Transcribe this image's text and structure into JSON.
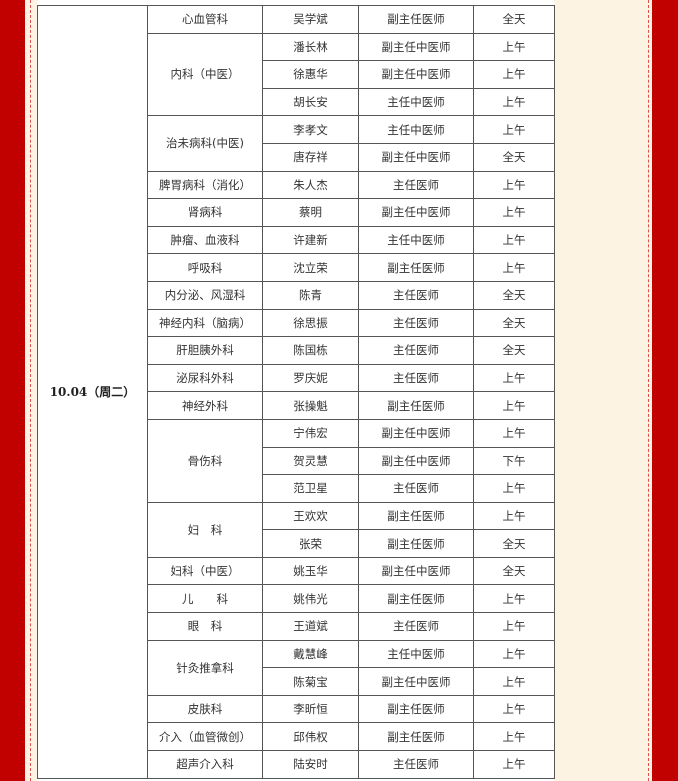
{
  "date": "10.04（周二）",
  "rows": [
    {
      "dept": "心血管科",
      "doctor": "吴学斌",
      "title": "副主任医师",
      "time": "全天"
    },
    {
      "dept": "内科（中医）",
      "doctor": "潘长林",
      "title": "副主任中医师",
      "time": "上午"
    },
    {
      "doctor": "徐惠华",
      "title": "副主任中医师",
      "time": "上午"
    },
    {
      "doctor": "胡长安",
      "title": "主任中医师",
      "time": "上午"
    },
    {
      "dept": "治未病科(中医)",
      "doctor": "李孝文",
      "title": "主任中医师",
      "time": "上午"
    },
    {
      "doctor": "唐存祥",
      "title": "副主任中医师",
      "time": "全天"
    },
    {
      "dept": "脾胃病科（消化）",
      "doctor": "朱人杰",
      "title": "主任医师",
      "time": "上午"
    },
    {
      "dept": "肾病科",
      "doctor": "蔡明",
      "title": "副主任中医师",
      "time": "上午"
    },
    {
      "dept": "肿瘤、血液科",
      "doctor": "许建新",
      "title": "主任中医师",
      "time": "上午"
    },
    {
      "dept": "呼吸科",
      "doctor": "沈立荣",
      "title": "副主任医师",
      "time": "上午"
    },
    {
      "dept": "内分泌、风湿科",
      "doctor": "陈青",
      "title": "主任医师",
      "time": "全天"
    },
    {
      "dept": "神经内科（脑病）",
      "doctor": "徐思振",
      "title": "主任医师",
      "time": "全天"
    },
    {
      "dept": "肝胆胰外科",
      "doctor": "陈国栋",
      "title": "主任医师",
      "time": "全天"
    },
    {
      "dept": "泌尿科外科",
      "doctor": "罗庆妮",
      "title": "主任医师",
      "time": "上午"
    },
    {
      "dept": "神经外科",
      "doctor": "张操魁",
      "title": "副主任医师",
      "time": "上午"
    },
    {
      "dept": "骨伤科",
      "doctor": "宁伟宏",
      "title": "副主任中医师",
      "time": "上午"
    },
    {
      "doctor": "贺灵慧",
      "title": "副主任中医师",
      "time": "下午"
    },
    {
      "doctor": "范卫星",
      "title": "主任医师",
      "time": "上午"
    },
    {
      "dept": "妇　科",
      "doctor": "王欢欢",
      "title": "副主任医师",
      "time": "上午"
    },
    {
      "doctor": "张荣",
      "title": "副主任医师",
      "time": "全天"
    },
    {
      "dept": "妇科（中医）",
      "doctor": "姚玉华",
      "title": "副主任中医师",
      "time": "全天"
    },
    {
      "dept": "儿　　科",
      "doctor": "姚伟光",
      "title": "副主任医师",
      "time": "上午"
    },
    {
      "dept": "眼　科",
      "doctor": "王道斌",
      "title": "主任医师",
      "time": "上午"
    },
    {
      "dept": "针灸推拿科",
      "doctor": "戴慧峰",
      "title": "主任中医师",
      "time": "上午"
    },
    {
      "doctor": "陈菊宝",
      "title": "副主任中医师",
      "time": "上午"
    },
    {
      "dept": "皮肤科",
      "doctor": "李昕恒",
      "title": "副主任医师",
      "time": "上午"
    },
    {
      "dept": "介入（血管微创）",
      "doctor": "邱伟权",
      "title": "副主任医师",
      "time": "上午"
    },
    {
      "dept": "超声介入科",
      "doctor": "陆安时",
      "title": "主任医师",
      "time": "上午"
    }
  ]
}
